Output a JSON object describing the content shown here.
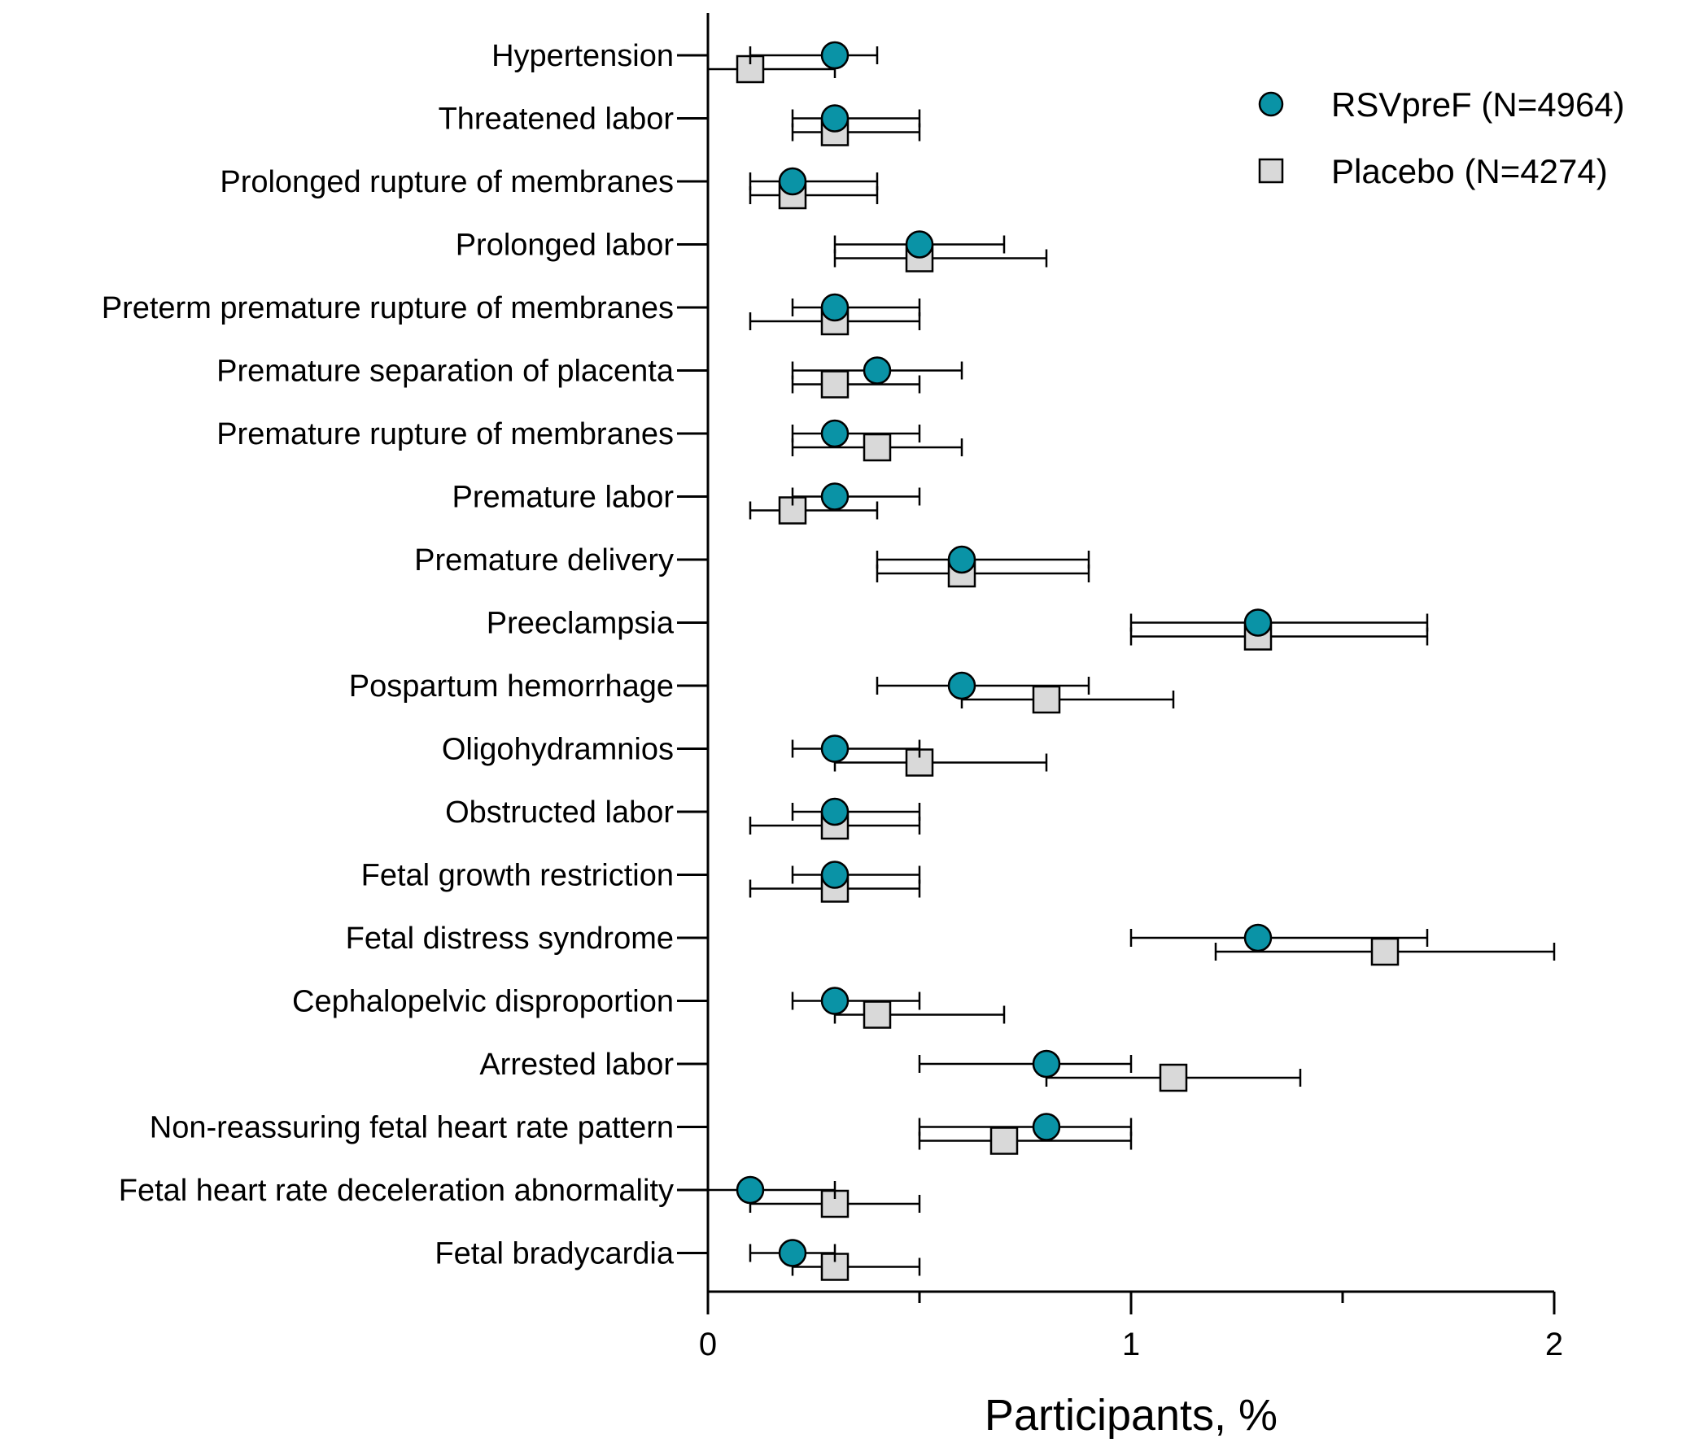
{
  "chart_data": {
    "type": "scatter",
    "title": "",
    "xlabel": "Participants, %",
    "ylabel": "",
    "xlim": [
      0,
      2
    ],
    "xticks": [
      0,
      1,
      2
    ],
    "x_tick_labels": [
      "0",
      "1",
      "2"
    ],
    "grid": false,
    "legend_position": "top-right",
    "categories": [
      "Hypertension",
      "Threatened labor",
      "Prolonged rupture of membranes",
      "Prolonged labor",
      "Preterm premature rupture of membranes",
      "Premature separation of placenta",
      "Premature rupture of membranes",
      "Premature labor",
      "Premature delivery",
      "Preeclampsia",
      "Pospartum hemorrhage",
      "Oligohydramnios",
      "Obstructed labor",
      "Fetal growth restriction",
      "Fetal distress syndrome",
      "Cephalopelvic disproportion",
      "Arrested labor",
      "Non-reassuring fetal heart rate pattern",
      "Fetal heart rate deceleration abnormality",
      "Fetal bradycardia"
    ],
    "series": [
      {
        "name": "RSVpreF (N=4964)",
        "marker": "circle",
        "color": "#0a93a6",
        "values": [
          0.3,
          0.3,
          0.2,
          0.5,
          0.3,
          0.4,
          0.3,
          0.3,
          0.6,
          1.3,
          0.6,
          0.3,
          0.3,
          0.3,
          1.3,
          0.3,
          0.8,
          0.8,
          0.1,
          0.2
        ],
        "ci_lower": [
          0.1,
          0.2,
          0.1,
          0.3,
          0.2,
          0.2,
          0.2,
          0.2,
          0.4,
          1.0,
          0.4,
          0.2,
          0.2,
          0.2,
          1.0,
          0.2,
          0.5,
          0.5,
          0.0,
          0.1
        ],
        "ci_upper": [
          0.4,
          0.5,
          0.4,
          0.7,
          0.5,
          0.6,
          0.5,
          0.5,
          0.9,
          1.7,
          0.9,
          0.5,
          0.5,
          0.5,
          1.7,
          0.5,
          1.0,
          1.0,
          0.3,
          0.3
        ]
      },
      {
        "name": "Placebo (N=4274)",
        "marker": "square",
        "color": "#d9d9d9",
        "values": [
          0.1,
          0.3,
          0.2,
          0.5,
          0.3,
          0.3,
          0.4,
          0.2,
          0.6,
          1.3,
          0.8,
          0.5,
          0.3,
          0.3,
          1.6,
          0.4,
          1.1,
          0.7,
          0.3,
          0.3
        ],
        "ci_lower": [
          0.0,
          0.2,
          0.1,
          0.3,
          0.1,
          0.2,
          0.2,
          0.1,
          0.4,
          1.0,
          0.6,
          0.3,
          0.1,
          0.1,
          1.2,
          0.3,
          0.8,
          0.5,
          0.1,
          0.2
        ],
        "ci_upper": [
          0.3,
          0.5,
          0.4,
          0.8,
          0.5,
          0.5,
          0.6,
          0.4,
          0.9,
          1.7,
          1.1,
          0.8,
          0.5,
          0.5,
          2.0,
          0.7,
          1.4,
          1.0,
          0.5,
          0.5
        ]
      }
    ]
  }
}
